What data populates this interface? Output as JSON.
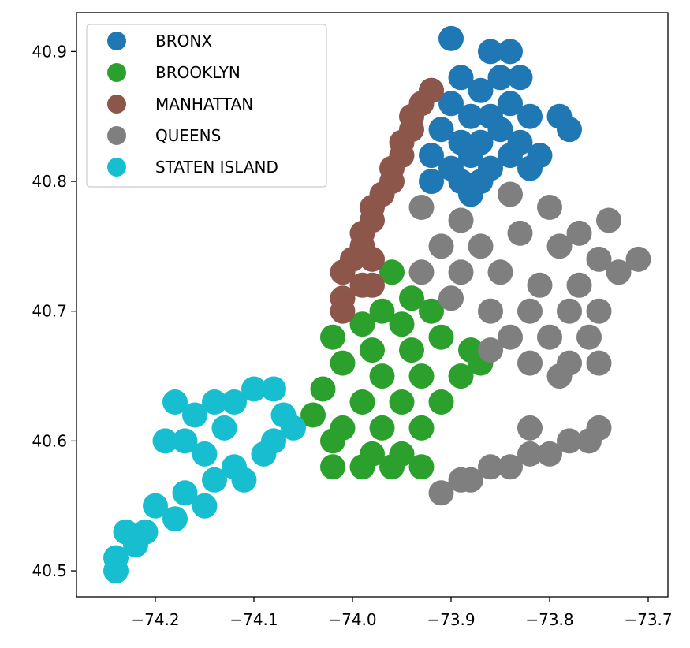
{
  "chart_data": {
    "type": "scatter",
    "title": "",
    "xlabel": "",
    "ylabel": "",
    "xlim": [
      -74.28,
      -73.68
    ],
    "ylim": [
      40.48,
      40.93
    ],
    "xticks": [
      -74.2,
      -74.1,
      -74.0,
      -73.9,
      -73.8,
      -73.7
    ],
    "xtick_labels": [
      "−74.2",
      "−74.1",
      "−74.0",
      "−73.9",
      "−73.8",
      "−73.7"
    ],
    "yticks": [
      40.5,
      40.6,
      40.7,
      40.8,
      40.9
    ],
    "ytick_labels": [
      "40.5",
      "40.6",
      "40.7",
      "40.8",
      "40.9"
    ],
    "grid": false,
    "legend_position": "top-left",
    "series": [
      {
        "name": "BRONX",
        "color": "#1f77b4",
        "points": [
          [
            -73.9,
            40.91
          ],
          [
            -73.86,
            40.9
          ],
          [
            -73.84,
            40.9
          ],
          [
            -73.89,
            40.88
          ],
          [
            -73.87,
            40.87
          ],
          [
            -73.85,
            40.88
          ],
          [
            -73.83,
            40.88
          ],
          [
            -73.92,
            40.87
          ],
          [
            -73.9,
            40.86
          ],
          [
            -73.88,
            40.85
          ],
          [
            -73.86,
            40.85
          ],
          [
            -73.84,
            40.86
          ],
          [
            -73.82,
            40.85
          ],
          [
            -73.91,
            40.84
          ],
          [
            -73.89,
            40.83
          ],
          [
            -73.87,
            40.83
          ],
          [
            -73.85,
            40.84
          ],
          [
            -73.83,
            40.83
          ],
          [
            -73.81,
            40.82
          ],
          [
            -73.92,
            40.82
          ],
          [
            -73.9,
            40.81
          ],
          [
            -73.88,
            40.82
          ],
          [
            -73.86,
            40.81
          ],
          [
            -73.84,
            40.82
          ],
          [
            -73.82,
            40.81
          ],
          [
            -73.79,
            40.85
          ],
          [
            -73.78,
            40.84
          ],
          [
            -73.92,
            40.8
          ],
          [
            -73.89,
            40.8
          ],
          [
            -73.87,
            40.8
          ],
          [
            -73.88,
            40.79
          ]
        ]
      },
      {
        "name": "BROOKLYN",
        "color": "#2ca02c",
        "points": [
          [
            -73.96,
            40.73
          ],
          [
            -73.94,
            40.71
          ],
          [
            -73.97,
            40.7
          ],
          [
            -73.99,
            40.69
          ],
          [
            -73.95,
            40.69
          ],
          [
            -73.92,
            40.7
          ],
          [
            -74.02,
            40.68
          ],
          [
            -73.98,
            40.67
          ],
          [
            -73.94,
            40.67
          ],
          [
            -73.91,
            40.68
          ],
          [
            -73.88,
            40.67
          ],
          [
            -74.01,
            40.66
          ],
          [
            -73.97,
            40.65
          ],
          [
            -73.93,
            40.65
          ],
          [
            -73.89,
            40.65
          ],
          [
            -73.87,
            40.66
          ],
          [
            -74.03,
            40.64
          ],
          [
            -73.99,
            40.63
          ],
          [
            -73.95,
            40.63
          ],
          [
            -73.91,
            40.63
          ],
          [
            -74.04,
            40.62
          ],
          [
            -74.01,
            40.61
          ],
          [
            -73.97,
            40.61
          ],
          [
            -73.93,
            40.61
          ],
          [
            -74.02,
            40.6
          ],
          [
            -73.98,
            40.59
          ],
          [
            -73.95,
            40.59
          ],
          [
            -73.99,
            40.58
          ],
          [
            -73.96,
            40.58
          ],
          [
            -73.93,
            40.58
          ],
          [
            -74.02,
            40.58
          ]
        ]
      },
      {
        "name": "MANHATTAN",
        "color": "#8c564b",
        "points": [
          [
            -73.92,
            40.87
          ],
          [
            -73.93,
            40.86
          ],
          [
            -73.94,
            40.85
          ],
          [
            -73.94,
            40.84
          ],
          [
            -73.95,
            40.83
          ],
          [
            -73.95,
            40.82
          ],
          [
            -73.96,
            40.81
          ],
          [
            -73.96,
            40.8
          ],
          [
            -73.97,
            40.79
          ],
          [
            -73.98,
            40.78
          ],
          [
            -73.98,
            40.77
          ],
          [
            -73.99,
            40.76
          ],
          [
            -73.99,
            40.75
          ],
          [
            -74.0,
            40.74
          ],
          [
            -73.98,
            40.74
          ],
          [
            -74.01,
            40.73
          ],
          [
            -73.99,
            40.72
          ],
          [
            -74.01,
            40.71
          ],
          [
            -73.98,
            40.72
          ],
          [
            -74.01,
            40.7
          ]
        ]
      },
      {
        "name": "QUEENS",
        "color": "#7f7f7f",
        "points": [
          [
            -73.93,
            40.78
          ],
          [
            -73.89,
            40.77
          ],
          [
            -73.84,
            40.79
          ],
          [
            -73.8,
            40.78
          ],
          [
            -73.77,
            40.76
          ],
          [
            -73.74,
            40.77
          ],
          [
            -73.91,
            40.75
          ],
          [
            -73.87,
            40.75
          ],
          [
            -73.83,
            40.76
          ],
          [
            -73.79,
            40.75
          ],
          [
            -73.75,
            40.74
          ],
          [
            -73.71,
            40.74
          ],
          [
            -73.93,
            40.73
          ],
          [
            -73.89,
            40.73
          ],
          [
            -73.85,
            40.73
          ],
          [
            -73.81,
            40.72
          ],
          [
            -73.77,
            40.72
          ],
          [
            -73.73,
            40.73
          ],
          [
            -73.9,
            40.71
          ],
          [
            -73.86,
            40.7
          ],
          [
            -73.82,
            40.7
          ],
          [
            -73.78,
            40.7
          ],
          [
            -73.75,
            40.7
          ],
          [
            -73.84,
            40.68
          ],
          [
            -73.8,
            40.68
          ],
          [
            -73.76,
            40.68
          ],
          [
            -73.82,
            40.66
          ],
          [
            -73.78,
            40.66
          ],
          [
            -73.75,
            40.66
          ],
          [
            -73.79,
            40.65
          ],
          [
            -73.86,
            40.67
          ],
          [
            -73.88,
            40.57
          ],
          [
            -73.86,
            40.58
          ],
          [
            -73.84,
            40.58
          ],
          [
            -73.82,
            40.59
          ],
          [
            -73.8,
            40.59
          ],
          [
            -73.78,
            40.6
          ],
          [
            -73.76,
            40.6
          ],
          [
            -73.75,
            40.61
          ],
          [
            -73.91,
            40.56
          ],
          [
            -73.89,
            40.57
          ],
          [
            -73.82,
            40.61
          ]
        ]
      },
      {
        "name": "STATEN ISLAND",
        "color": "#17becf",
        "points": [
          [
            -74.24,
            40.51
          ],
          [
            -74.23,
            40.53
          ],
          [
            -74.21,
            40.53
          ],
          [
            -74.2,
            40.55
          ],
          [
            -74.18,
            40.54
          ],
          [
            -74.17,
            40.56
          ],
          [
            -74.15,
            40.55
          ],
          [
            -74.14,
            40.57
          ],
          [
            -74.12,
            40.58
          ],
          [
            -74.11,
            40.57
          ],
          [
            -74.09,
            40.59
          ],
          [
            -74.08,
            40.6
          ],
          [
            -74.06,
            40.61
          ],
          [
            -74.07,
            40.62
          ],
          [
            -74.08,
            40.64
          ],
          [
            -74.1,
            40.64
          ],
          [
            -74.12,
            40.63
          ],
          [
            -74.14,
            40.63
          ],
          [
            -74.16,
            40.62
          ],
          [
            -74.18,
            40.63
          ],
          [
            -74.17,
            40.6
          ],
          [
            -74.15,
            40.59
          ],
          [
            -74.13,
            40.61
          ],
          [
            -74.19,
            40.6
          ],
          [
            -74.24,
            40.5
          ],
          [
            -74.22,
            40.52
          ]
        ]
      }
    ]
  }
}
